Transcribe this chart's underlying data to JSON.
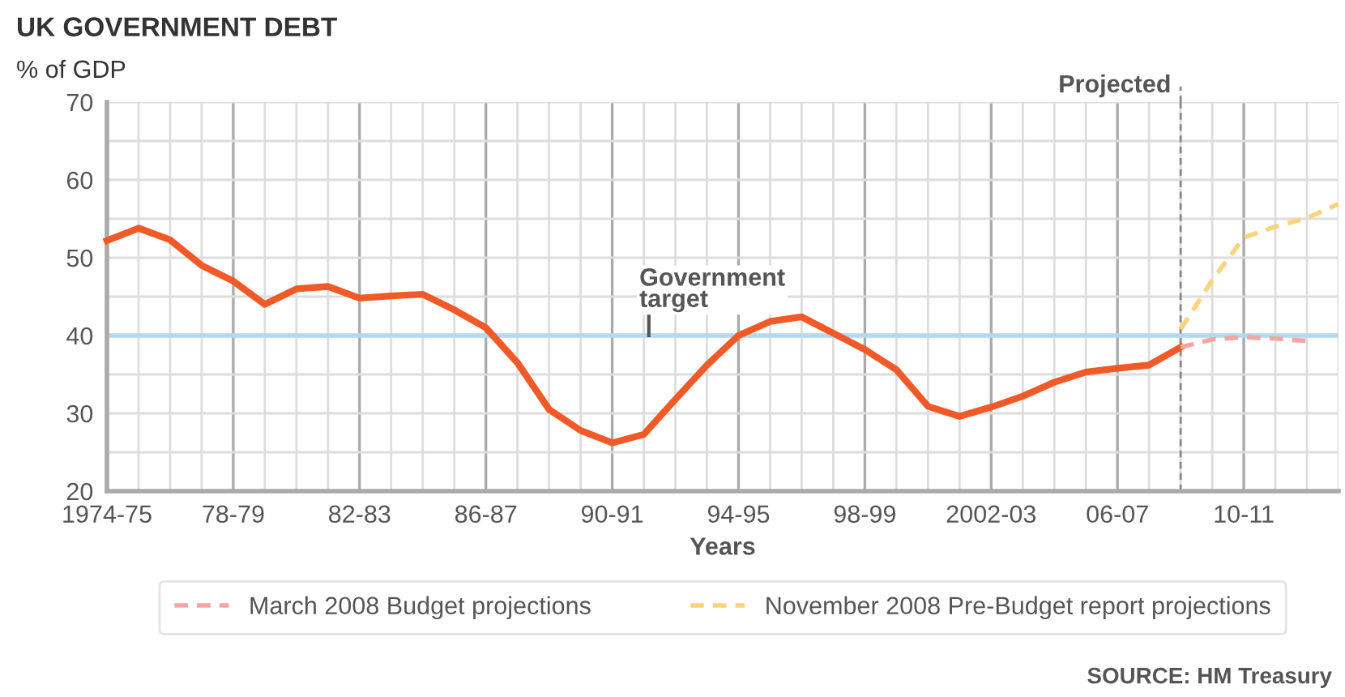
{
  "chart_data": {
    "type": "line",
    "title": "UK GOVERNMENT DEBT",
    "ylabel": "% of GDP",
    "xlabel": "Years",
    "categories": [
      "1974-75",
      null,
      null,
      null,
      "78-79",
      null,
      null,
      null,
      "82-83",
      null,
      null,
      null,
      "86-87",
      null,
      null,
      null,
      "90-91",
      null,
      null,
      null,
      "94-95",
      null,
      null,
      null,
      "98-99",
      null,
      null,
      null,
      "2002-03",
      null,
      null,
      null,
      "06-07",
      null,
      null,
      null,
      "10-11",
      null,
      null,
      null
    ],
    "ylim": [
      20,
      70
    ],
    "yticks": [
      20,
      {
        "value": 25,
        "label": null
      },
      30,
      {
        "value": 35,
        "label": null
      },
      40,
      {
        "value": 45,
        "label": null
      },
      50,
      {
        "value": 55,
        "label": null
      },
      60,
      {
        "value": 65,
        "label": null
      },
      70
    ],
    "grid": true,
    "legend": "bottom",
    "series": [
      {
        "color": "#f05a28",
        "line_style": "solid",
        "values": [
          52.2,
          53.8,
          52.3,
          49,
          47,
          44,
          46,
          46.3,
          44.8,
          45.1,
          45.3,
          43.3,
          41,
          36.5,
          30.5,
          27.8,
          26.2,
          27.3,
          31.8,
          36.2,
          40,
          41.8,
          42.4,
          40.3,
          38.2,
          35.6,
          30.9,
          29.6,
          30.8,
          32.2,
          34,
          35.3,
          35.8,
          36.2,
          38.5,
          null,
          null,
          null,
          null,
          null
        ]
      },
      {
        "name": "March 2008 Budget projections",
        "color": "#f4a6a0",
        "line_style": "dashed",
        "values": [
          null,
          null,
          null,
          null,
          null,
          null,
          null,
          null,
          null,
          null,
          null,
          null,
          null,
          null,
          null,
          null,
          null,
          null,
          null,
          null,
          null,
          null,
          null,
          null,
          null,
          null,
          null,
          null,
          null,
          null,
          null,
          null,
          null,
          null,
          38.5,
          39.5,
          39.8,
          39.6,
          39.3,
          null
        ]
      },
      {
        "name": "November 2008 Pre-Budget report projections",
        "color": "#fcd27f",
        "line_style": "dashed",
        "values": [
          null,
          null,
          null,
          null,
          null,
          null,
          null,
          null,
          null,
          null,
          null,
          null,
          null,
          null,
          null,
          null,
          null,
          null,
          null,
          null,
          null,
          null,
          null,
          null,
          null,
          null,
          null,
          null,
          null,
          null,
          null,
          null,
          null,
          null,
          40.8,
          47.1,
          52.6,
          54,
          55.1,
          56.9
        ]
      }
    ],
    "ref_lines": [
      {
        "axis": "y",
        "value": 40,
        "label": "Government target",
        "color": "#b3d9f2",
        "line_style": "solid"
      }
    ],
    "annotations": [
      "Projected",
      "SOURCE: HM Treasury"
    ]
  }
}
